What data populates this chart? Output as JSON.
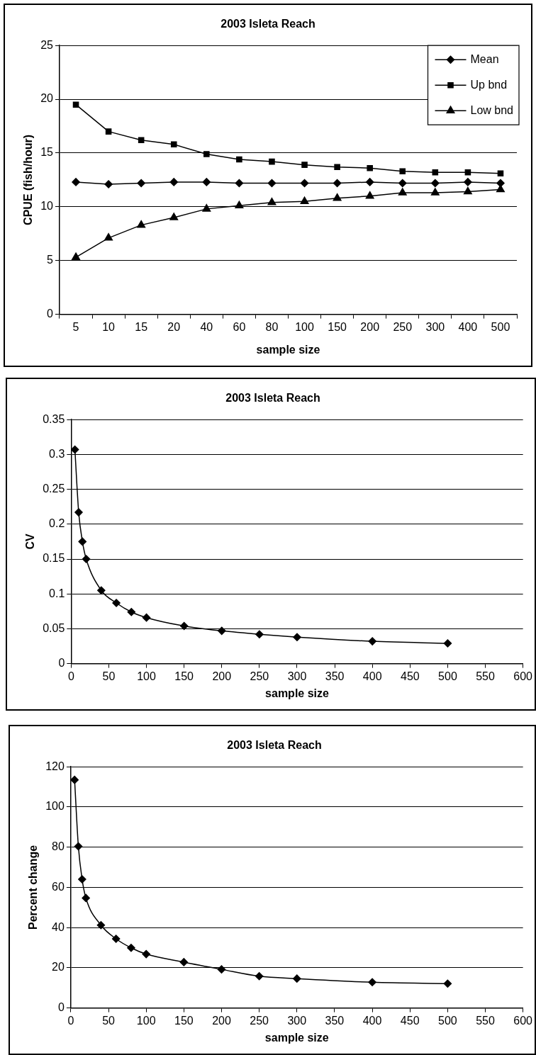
{
  "chart_data": [
    {
      "type": "line",
      "title": "2003 Isleta Reach",
      "xlabel": "sample size",
      "ylabel": "CPUE (fish/hour)",
      "categories": [
        "5",
        "10",
        "15",
        "20",
        "40",
        "60",
        "80",
        "100",
        "150",
        "200",
        "250",
        "300",
        "400",
        "500"
      ],
      "ylim": [
        0,
        25
      ],
      "yticks": [
        0,
        5,
        10,
        15,
        20,
        25
      ],
      "grid": "y",
      "legend": "top right",
      "series": [
        {
          "name": "Mean",
          "color": "#000000",
          "marker": "diamond",
          "values": [
            12.3,
            12.1,
            12.2,
            12.3,
            12.3,
            12.2,
            12.2,
            12.2,
            12.2,
            12.3,
            12.2,
            12.2,
            12.3,
            12.2
          ]
        },
        {
          "name": "Up bnd",
          "color": "#000000",
          "marker": "square",
          "values": [
            19.5,
            17.0,
            16.2,
            15.8,
            14.9,
            14.4,
            14.2,
            13.9,
            13.7,
            13.6,
            13.3,
            13.2,
            13.2,
            13.1
          ]
        },
        {
          "name": "Low bnd",
          "color": "#000000",
          "marker": "triangle",
          "values": [
            5.3,
            7.1,
            8.3,
            9.0,
            9.8,
            10.1,
            10.4,
            10.5,
            10.8,
            11.0,
            11.3,
            11.3,
            11.4,
            11.6
          ]
        }
      ]
    },
    {
      "type": "line",
      "title": "2003 Isleta Reach",
      "xlabel": "sample size",
      "ylabel": "CV",
      "x": [
        5,
        10,
        15,
        20,
        40,
        60,
        80,
        100,
        150,
        200,
        250,
        300,
        400,
        500
      ],
      "xlim": [
        0,
        600
      ],
      "xticks": [
        0,
        50,
        100,
        150,
        200,
        250,
        300,
        350,
        400,
        450,
        500,
        550,
        600
      ],
      "ylim": [
        0,
        0.35
      ],
      "yticks": [
        0,
        0.05,
        0.1,
        0.15,
        0.2,
        0.25,
        0.3,
        0.35
      ],
      "grid": "y",
      "marker": "diamond",
      "series": [
        {
          "color": "#000000",
          "values": [
            0.307,
            0.217,
            0.175,
            0.15,
            0.105,
            0.087,
            0.074,
            0.066,
            0.054,
            0.047,
            0.042,
            0.038,
            0.032,
            0.029
          ]
        }
      ]
    },
    {
      "type": "line",
      "title": "2003 Isleta Reach",
      "xlabel": "sample size",
      "ylabel": "Percent change",
      "x": [
        5,
        10,
        15,
        20,
        40,
        60,
        80,
        100,
        150,
        200,
        250,
        300,
        400,
        500
      ],
      "xlim": [
        0,
        600
      ],
      "xticks": [
        0,
        50,
        100,
        150,
        200,
        250,
        300,
        350,
        400,
        450,
        500,
        550,
        600
      ],
      "ylim": [
        0,
        120
      ],
      "yticks": [
        0,
        20,
        40,
        60,
        80,
        100,
        120
      ],
      "grid": "y",
      "marker": "diamond",
      "series": [
        {
          "color": "#000000",
          "values": [
            113.5,
            80.4,
            64.0,
            54.7,
            41.2,
            34.4,
            29.9,
            26.8,
            22.8,
            19.2,
            15.8,
            14.6,
            12.8,
            12.1
          ]
        }
      ]
    }
  ]
}
